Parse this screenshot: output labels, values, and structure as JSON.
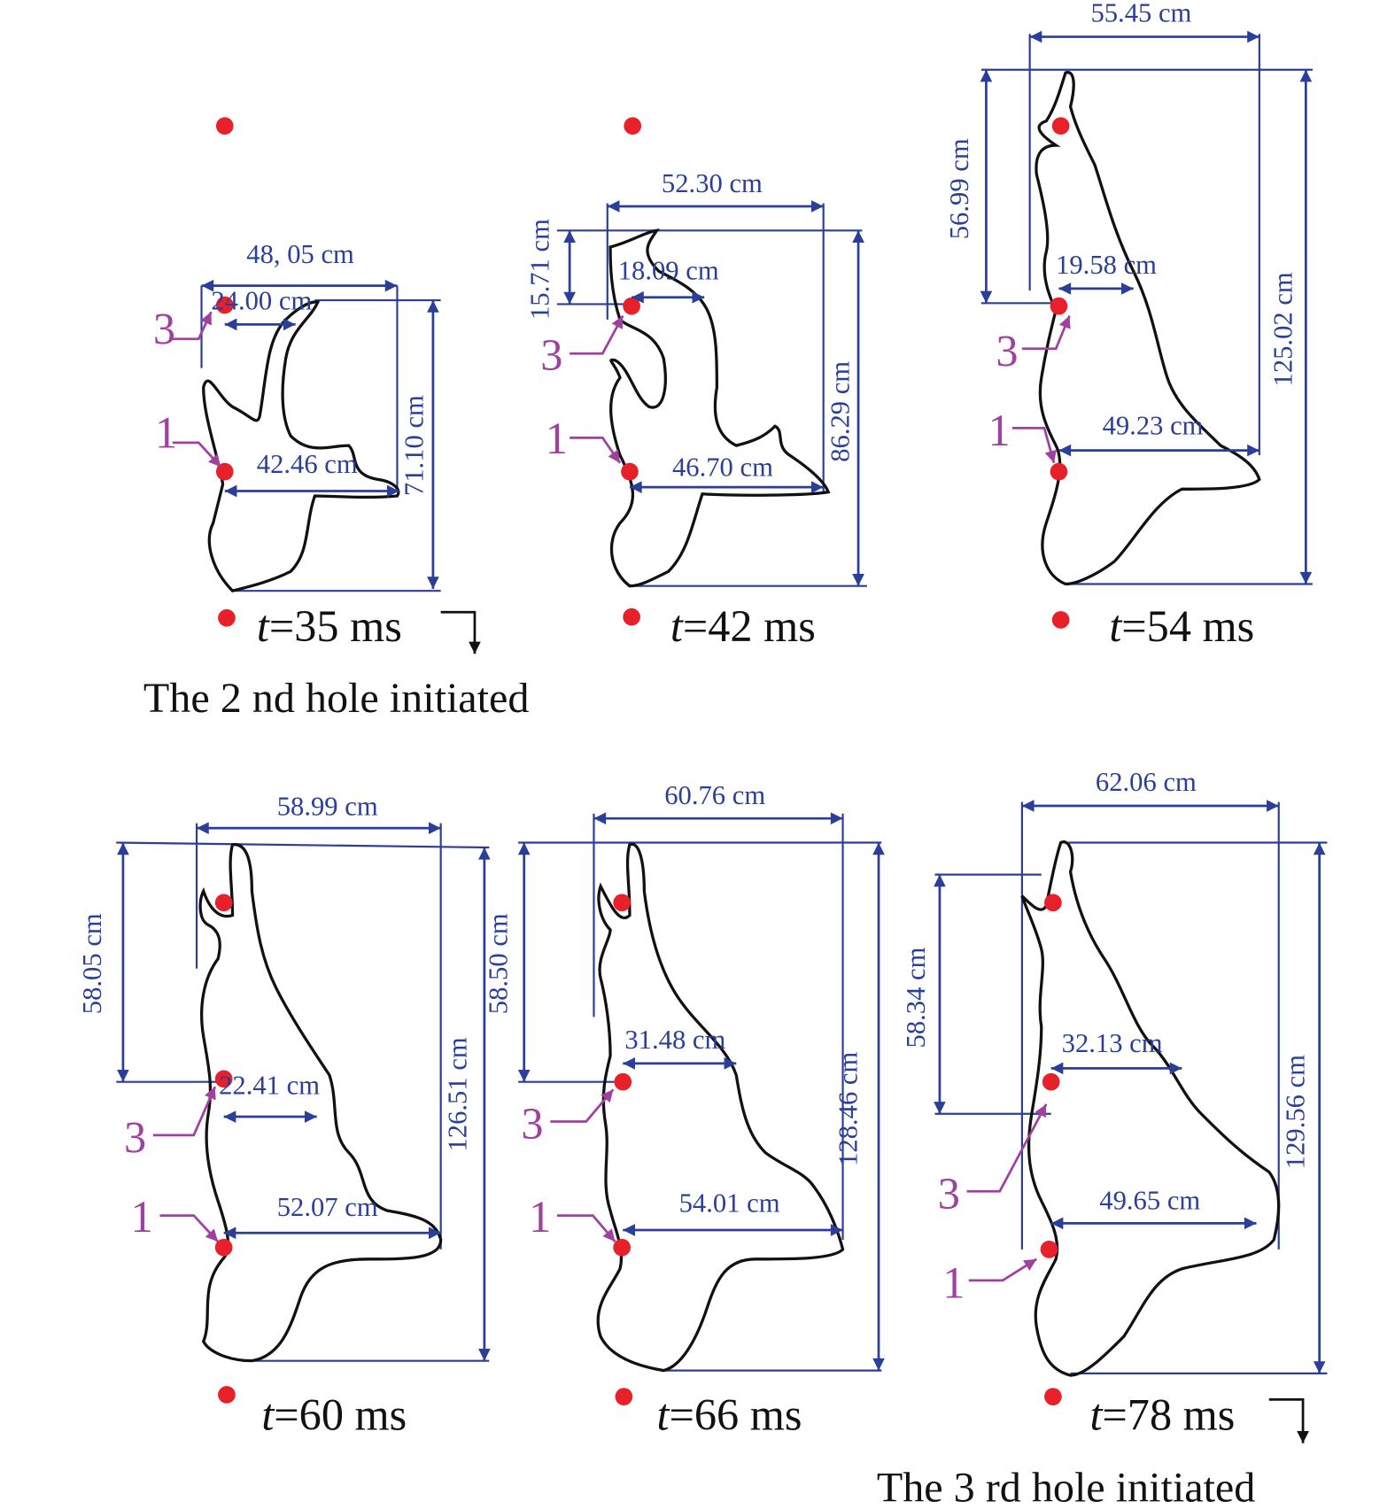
{
  "panels": [
    {
      "time": {
        "variable": "t",
        "value": "=35 ms"
      },
      "dimensions": [
        "48, 05 cm",
        "24.00 cm",
        "42.46 cm",
        "71.10 cm"
      ],
      "holes": [
        "3",
        "1"
      ]
    },
    {
      "time": {
        "variable": "t",
        "value": "=42 ms"
      },
      "dimensions": [
        "52.30 cm",
        "18.09 cm",
        "15.71 cm",
        "46.70 cm",
        "86.29 cm"
      ],
      "holes": [
        "3",
        "1"
      ]
    },
    {
      "time": {
        "variable": "t",
        "value": "=54 ms"
      },
      "dimensions": [
        "55.45 cm",
        "56.99 cm",
        "19.58 cm",
        "49.23 cm",
        "125.02 cm"
      ],
      "holes": [
        "3",
        "1"
      ]
    },
    {
      "time": {
        "variable": "t",
        "value": "=60 ms"
      },
      "dimensions": [
        "58.99 cm",
        "58.05 cm",
        "22.41 cm",
        "52.07 cm",
        "126.51 cm"
      ],
      "holes": [
        "3",
        "1"
      ]
    },
    {
      "time": {
        "variable": "t",
        "value": "=66 ms"
      },
      "dimensions": [
        "60.76 cm",
        "58.50 cm",
        "31.48 cm",
        "54.01 cm",
        "128.46 cm"
      ],
      "holes": [
        "3",
        "1"
      ]
    },
    {
      "time": {
        "variable": "t",
        "value": "=78 ms"
      },
      "dimensions": [
        "62.06 cm",
        "58.34 cm",
        "32.13 cm",
        "49.65 cm",
        "129.56 cm"
      ],
      "holes": [
        "3",
        "1"
      ]
    }
  ],
  "notes": [
    "The 2 nd hole initiated",
    "The 3 rd hole initiated"
  ]
}
